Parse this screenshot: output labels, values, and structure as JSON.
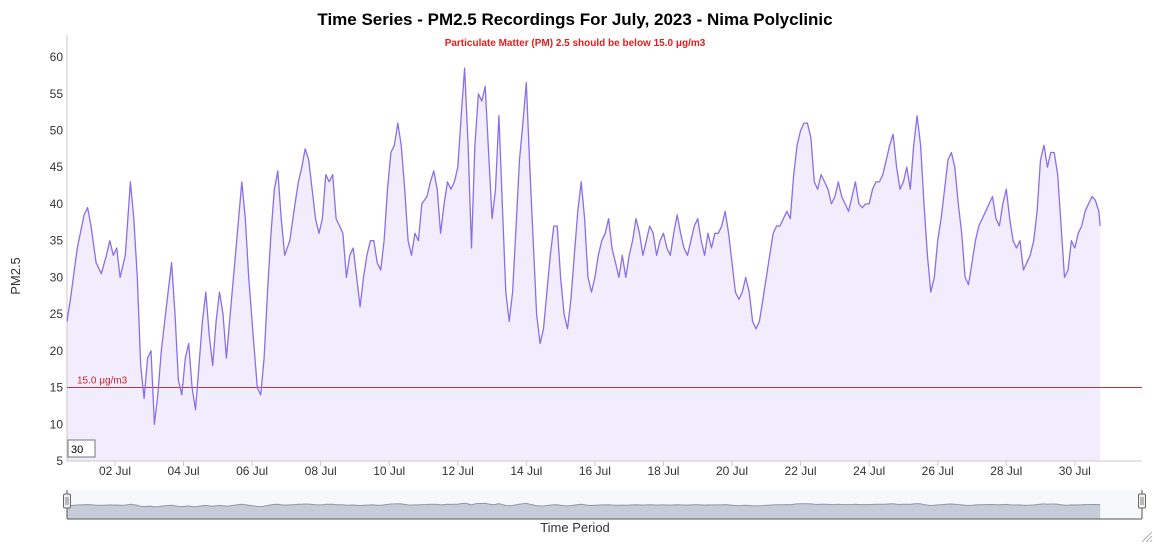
{
  "chart_data": {
    "type": "area",
    "title": "Time Series - PM2.5 Recordings For July, 2023 - Nima Polyclinic",
    "subtitle": "Particulate Matter (PM) 2.5 should be below 15.0 μg/m3",
    "xlabel": "Time Period",
    "ylabel": "PM2.5",
    "ylim": [
      5,
      63
    ],
    "yticks": [
      5,
      10,
      15,
      20,
      25,
      30,
      35,
      40,
      45,
      50,
      55,
      60
    ],
    "xlim": [
      0.6,
      31.96
    ],
    "xticks": [
      {
        "x": 2,
        "label": "02 Jul"
      },
      {
        "x": 4,
        "label": "04 Jul"
      },
      {
        "x": 6,
        "label": "06 Jul"
      },
      {
        "x": 8,
        "label": "08 Jul"
      },
      {
        "x": 10,
        "label": "10 Jul"
      },
      {
        "x": 12,
        "label": "12 Jul"
      },
      {
        "x": 14,
        "label": "14 Jul"
      },
      {
        "x": 16,
        "label": "16 Jul"
      },
      {
        "x": 18,
        "label": "18 Jul"
      },
      {
        "x": 20,
        "label": "20 Jul"
      },
      {
        "x": 22,
        "label": "22 Jul"
      },
      {
        "x": 24,
        "label": "24 Jul"
      },
      {
        "x": 26,
        "label": "26 Jul"
      },
      {
        "x": 28,
        "label": "28 Jul"
      },
      {
        "x": 30,
        "label": "30 Jul"
      }
    ],
    "threshold": {
      "value": 15,
      "label": "15.0 μg/m3",
      "color": "#c8323c"
    },
    "rolling_period": "30",
    "grid": false,
    "colors": {
      "line": "#8b6ee8",
      "fill": "#f2edfc",
      "navigator_line": "#8c98ad",
      "navigator_fill": "#c6cdd9"
    },
    "series": [
      {
        "values": [
          [
            0.6,
            24
          ],
          [
            0.7,
            27
          ],
          [
            0.9,
            34
          ],
          [
            1.1,
            38.5
          ],
          [
            1.2,
            39.5
          ],
          [
            1.3,
            37
          ],
          [
            1.45,
            32
          ],
          [
            1.6,
            30.5
          ],
          [
            1.75,
            33
          ],
          [
            1.85,
            35
          ],
          [
            1.95,
            33
          ],
          [
            2.05,
            34
          ],
          [
            2.15,
            30
          ],
          [
            2.3,
            33
          ],
          [
            2.45,
            43
          ],
          [
            2.55,
            38
          ],
          [
            2.65,
            30
          ],
          [
            2.75,
            18
          ],
          [
            2.85,
            13.5
          ],
          [
            2.95,
            19
          ],
          [
            3.05,
            20
          ],
          [
            3.15,
            10
          ],
          [
            3.25,
            14
          ],
          [
            3.35,
            20
          ],
          [
            3.45,
            24
          ],
          [
            3.55,
            28
          ],
          [
            3.65,
            32
          ],
          [
            3.75,
            25
          ],
          [
            3.85,
            16
          ],
          [
            3.95,
            14
          ],
          [
            4.05,
            19
          ],
          [
            4.15,
            21
          ],
          [
            4.25,
            15
          ],
          [
            4.35,
            12
          ],
          [
            4.45,
            18
          ],
          [
            4.55,
            24
          ],
          [
            4.65,
            28
          ],
          [
            4.75,
            22
          ],
          [
            4.85,
            18
          ],
          [
            4.95,
            24
          ],
          [
            5.05,
            28
          ],
          [
            5.15,
            25
          ],
          [
            5.25,
            19
          ],
          [
            5.4,
            27
          ],
          [
            5.55,
            35
          ],
          [
            5.7,
            43
          ],
          [
            5.8,
            38
          ],
          [
            5.9,
            30
          ],
          [
            6.05,
            21
          ],
          [
            6.15,
            15
          ],
          [
            6.25,
            14
          ],
          [
            6.35,
            19
          ],
          [
            6.45,
            28
          ],
          [
            6.55,
            36
          ],
          [
            6.65,
            42
          ],
          [
            6.75,
            44.5
          ],
          [
            6.85,
            38
          ],
          [
            6.95,
            33
          ],
          [
            7.1,
            35
          ],
          [
            7.25,
            40
          ],
          [
            7.35,
            43
          ],
          [
            7.45,
            45
          ],
          [
            7.55,
            47.5
          ],
          [
            7.65,
            46
          ],
          [
            7.75,
            42
          ],
          [
            7.85,
            38
          ],
          [
            7.95,
            36
          ],
          [
            8.05,
            38
          ],
          [
            8.15,
            44
          ],
          [
            8.25,
            43
          ],
          [
            8.35,
            44
          ],
          [
            8.45,
            38
          ],
          [
            8.55,
            37
          ],
          [
            8.65,
            36
          ],
          [
            8.75,
            30
          ],
          [
            8.85,
            33
          ],
          [
            8.95,
            34
          ],
          [
            9.05,
            30
          ],
          [
            9.15,
            26
          ],
          [
            9.25,
            30
          ],
          [
            9.35,
            33
          ],
          [
            9.45,
            35
          ],
          [
            9.55,
            35
          ],
          [
            9.65,
            32
          ],
          [
            9.75,
            31
          ],
          [
            9.85,
            35
          ],
          [
            9.95,
            42
          ],
          [
            10.05,
            47
          ],
          [
            10.15,
            48
          ],
          [
            10.25,
            51
          ],
          [
            10.35,
            48
          ],
          [
            10.45,
            42
          ],
          [
            10.55,
            35
          ],
          [
            10.65,
            33
          ],
          [
            10.75,
            36
          ],
          [
            10.85,
            35
          ],
          [
            10.95,
            40
          ],
          [
            11.1,
            41
          ],
          [
            11.2,
            43
          ],
          [
            11.3,
            44.5
          ],
          [
            11.4,
            42
          ],
          [
            11.5,
            36
          ],
          [
            11.6,
            40
          ],
          [
            11.7,
            43
          ],
          [
            11.8,
            42
          ],
          [
            11.9,
            43
          ],
          [
            12.0,
            45
          ],
          [
            12.1,
            52
          ],
          [
            12.2,
            58.5
          ],
          [
            12.3,
            48
          ],
          [
            12.4,
            34
          ],
          [
            12.5,
            48
          ],
          [
            12.6,
            55
          ],
          [
            12.7,
            54
          ],
          [
            12.8,
            56
          ],
          [
            12.9,
            47
          ],
          [
            13.0,
            38
          ],
          [
            13.1,
            42
          ],
          [
            13.2,
            52
          ],
          [
            13.3,
            40
          ],
          [
            13.4,
            28
          ],
          [
            13.5,
            24
          ],
          [
            13.6,
            28
          ],
          [
            13.7,
            37
          ],
          [
            13.8,
            46
          ],
          [
            13.9,
            51
          ],
          [
            14.0,
            56.5
          ],
          [
            14.1,
            45
          ],
          [
            14.2,
            35
          ],
          [
            14.3,
            25
          ],
          [
            14.4,
            21
          ],
          [
            14.5,
            23
          ],
          [
            14.6,
            28
          ],
          [
            14.7,
            33
          ],
          [
            14.8,
            37
          ],
          [
            14.9,
            37
          ],
          [
            15.0,
            30
          ],
          [
            15.1,
            25
          ],
          [
            15.2,
            23
          ],
          [
            15.3,
            27
          ],
          [
            15.4,
            33
          ],
          [
            15.5,
            39
          ],
          [
            15.6,
            43
          ],
          [
            15.7,
            38
          ],
          [
            15.8,
            30
          ],
          [
            15.9,
            28
          ],
          [
            16.0,
            30
          ],
          [
            16.1,
            33
          ],
          [
            16.2,
            35
          ],
          [
            16.3,
            36
          ],
          [
            16.4,
            38
          ],
          [
            16.5,
            34
          ],
          [
            16.6,
            32
          ],
          [
            16.7,
            30
          ],
          [
            16.8,
            33
          ],
          [
            16.9,
            30
          ],
          [
            17.0,
            33
          ],
          [
            17.1,
            35
          ],
          [
            17.2,
            38
          ],
          [
            17.3,
            36
          ],
          [
            17.4,
            33
          ],
          [
            17.5,
            35
          ],
          [
            17.6,
            37
          ],
          [
            17.7,
            36
          ],
          [
            17.8,
            33
          ],
          [
            17.9,
            35
          ],
          [
            18.0,
            36
          ],
          [
            18.1,
            34
          ],
          [
            18.2,
            33
          ],
          [
            18.3,
            36
          ],
          [
            18.4,
            38.5
          ],
          [
            18.5,
            36
          ],
          [
            18.6,
            34
          ],
          [
            18.7,
            33
          ],
          [
            18.8,
            35
          ],
          [
            18.9,
            37
          ],
          [
            19.0,
            38
          ],
          [
            19.1,
            35
          ],
          [
            19.2,
            33
          ],
          [
            19.3,
            36
          ],
          [
            19.4,
            34
          ],
          [
            19.5,
            36
          ],
          [
            19.6,
            36
          ],
          [
            19.7,
            37
          ],
          [
            19.8,
            39
          ],
          [
            19.9,
            36
          ],
          [
            20.0,
            32
          ],
          [
            20.1,
            28
          ],
          [
            20.2,
            27
          ],
          [
            20.3,
            28
          ],
          [
            20.4,
            30
          ],
          [
            20.5,
            28
          ],
          [
            20.6,
            24
          ],
          [
            20.7,
            23
          ],
          [
            20.8,
            24
          ],
          [
            20.9,
            27
          ],
          [
            21.0,
            30
          ],
          [
            21.1,
            33
          ],
          [
            21.2,
            36
          ],
          [
            21.3,
            37
          ],
          [
            21.4,
            37
          ],
          [
            21.5,
            38
          ],
          [
            21.6,
            39
          ],
          [
            21.7,
            38
          ],
          [
            21.8,
            44
          ],
          [
            21.9,
            48
          ],
          [
            22.0,
            50
          ],
          [
            22.1,
            51
          ],
          [
            22.2,
            51
          ],
          [
            22.3,
            49
          ],
          [
            22.4,
            43
          ],
          [
            22.5,
            42
          ],
          [
            22.6,
            44
          ],
          [
            22.7,
            43
          ],
          [
            22.8,
            42
          ],
          [
            22.9,
            40
          ],
          [
            23.0,
            41
          ],
          [
            23.1,
            43
          ],
          [
            23.2,
            41
          ],
          [
            23.3,
            40
          ],
          [
            23.4,
            39
          ],
          [
            23.5,
            41
          ],
          [
            23.6,
            43
          ],
          [
            23.7,
            40
          ],
          [
            23.8,
            39.5
          ],
          [
            23.9,
            40
          ],
          [
            24.0,
            40
          ],
          [
            24.1,
            42
          ],
          [
            24.2,
            43
          ],
          [
            24.3,
            43
          ],
          [
            24.4,
            44
          ],
          [
            24.5,
            46
          ],
          [
            24.6,
            48
          ],
          [
            24.7,
            49.5
          ],
          [
            24.8,
            45
          ],
          [
            24.9,
            42
          ],
          [
            25.0,
            43
          ],
          [
            25.1,
            45
          ],
          [
            25.2,
            42
          ],
          [
            25.3,
            48
          ],
          [
            25.4,
            52
          ],
          [
            25.5,
            48
          ],
          [
            25.6,
            40
          ],
          [
            25.7,
            33
          ],
          [
            25.8,
            28
          ],
          [
            25.9,
            30
          ],
          [
            26.0,
            35
          ],
          [
            26.1,
            38
          ],
          [
            26.2,
            42
          ],
          [
            26.3,
            46
          ],
          [
            26.4,
            47
          ],
          [
            26.5,
            45
          ],
          [
            26.6,
            40
          ],
          [
            26.7,
            36
          ],
          [
            26.8,
            30
          ],
          [
            26.9,
            29
          ],
          [
            27.0,
            32
          ],
          [
            27.1,
            35
          ],
          [
            27.2,
            37
          ],
          [
            27.3,
            38
          ],
          [
            27.4,
            39
          ],
          [
            27.5,
            40
          ],
          [
            27.6,
            41
          ],
          [
            27.7,
            38
          ],
          [
            27.8,
            37
          ],
          [
            27.9,
            40
          ],
          [
            28.0,
            42
          ],
          [
            28.1,
            38
          ],
          [
            28.2,
            35
          ],
          [
            28.3,
            34
          ],
          [
            28.4,
            35
          ],
          [
            28.5,
            31
          ],
          [
            28.6,
            32
          ],
          [
            28.7,
            33
          ],
          [
            28.8,
            35
          ],
          [
            28.9,
            39
          ],
          [
            29.0,
            46
          ],
          [
            29.1,
            48
          ],
          [
            29.2,
            45
          ],
          [
            29.3,
            47
          ],
          [
            29.4,
            47
          ],
          [
            29.5,
            44
          ],
          [
            29.6,
            37
          ],
          [
            29.7,
            30
          ],
          [
            29.8,
            31
          ],
          [
            29.9,
            35
          ],
          [
            30.0,
            34
          ],
          [
            30.1,
            36
          ],
          [
            30.2,
            37
          ],
          [
            30.3,
            39
          ],
          [
            30.4,
            40
          ],
          [
            30.5,
            41
          ],
          [
            30.6,
            40.5
          ],
          [
            30.7,
            39
          ],
          [
            30.74,
            37
          ]
        ]
      }
    ]
  }
}
